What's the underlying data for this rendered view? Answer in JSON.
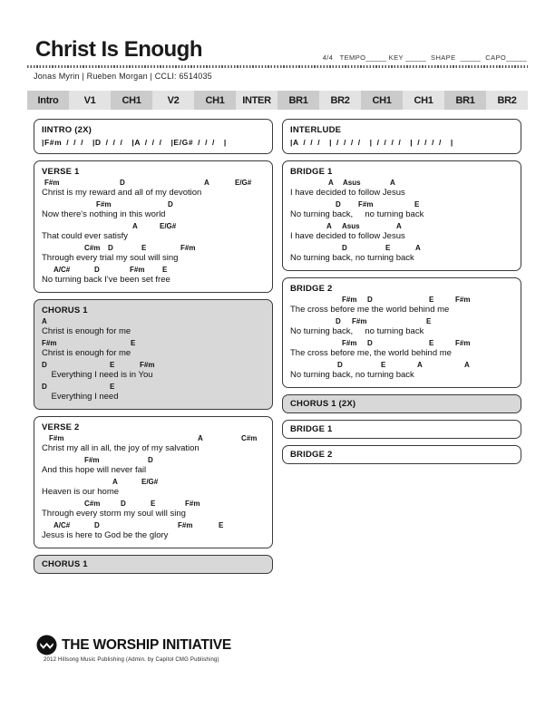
{
  "page": {
    "title": "Christ Is Enough",
    "meta_line": "4/4   TEMPO_____ KEY _____  SHAPE  _____  CAPO_____",
    "authors": "Jonas Myrin | Rueben Morgan |  CCLI: 6514035"
  },
  "nav": {
    "items": [
      "Intro",
      "V1",
      "CH1",
      "V2",
      "CH1",
      "INTER",
      "BR1",
      "BR2",
      "CH1",
      "CH1",
      "BR1",
      "BR2"
    ]
  },
  "colors": {
    "nav_dark": "#cbcbcb",
    "nav_light": "#e3e3e3",
    "chorus_fill": "#d8d8d8",
    "border": "#3a3a3a"
  },
  "columns": {
    "left": [
      {
        "kind": "chart",
        "fill": "white",
        "title": "IINTRO (2X)",
        "chordline": "|F#m / / /  |D / / /  |A / / /  |E/G# / / /  |"
      },
      {
        "kind": "chart",
        "fill": "white",
        "title": "VERSE 1",
        "lines": [
          {
            "chords": [
              [
                "F#m",
                3
              ],
              [
                "D",
                86
              ],
              [
                "A",
                179
              ],
              [
                "E/G#",
                213
              ]
            ],
            "lyric": "Christ is my reward and all of my devotion"
          },
          {
            "chords": [
              [
                "F#m",
                60
              ],
              [
                "D",
                139
              ]
            ],
            "lyric": "Now there's nothing in this world"
          },
          {
            "chords": [
              [
                "A",
                100
              ],
              [
                "E/G#",
                130
              ]
            ],
            "lyric": "That could ever satisfy"
          },
          {
            "chords": [
              [
                "C#m",
                47
              ],
              [
                "D",
                73
              ],
              [
                "E",
                110
              ],
              [
                "F#m",
                153
              ]
            ],
            "lyric": "Through every trial my soul will sing"
          },
          {
            "chords": [
              [
                "A/C#",
                13
              ],
              [
                "D",
                58
              ],
              [
                "F#m",
                97
              ],
              [
                "E",
                133
              ]
            ],
            "lyric": "No turning back I've been set free"
          }
        ]
      },
      {
        "kind": "chart",
        "fill": "gray",
        "title": "CHORUS 1",
        "lines": [
          {
            "chords": [
              [
                "A",
                0
              ]
            ],
            "lyric": "Christ is enough for me"
          },
          {
            "chords": [
              [
                "F#m",
                0
              ],
              [
                "E",
                98
              ]
            ],
            "lyric": "Christ is enough for me"
          },
          {
            "chords": [
              [
                "D",
                0
              ],
              [
                "E",
                75
              ],
              [
                "F#m",
                108
              ]
            ],
            "lyric": "    Everything I need is in You"
          },
          {
            "chords": [
              [
                "D",
                0
              ],
              [
                "E",
                75
              ]
            ],
            "lyric": "    Everything I need"
          }
        ]
      },
      {
        "kind": "chart",
        "fill": "white",
        "title": "VERSE 2",
        "lines": [
          {
            "chords": [
              [
                "F#m",
                8
              ],
              [
                "A",
                172
              ],
              [
                "C#m",
                220
              ]
            ],
            "lyric": "Christ my all in all, the joy of my salvation"
          },
          {
            "chords": [
              [
                "F#m",
                47
              ],
              [
                "D",
                117
              ]
            ],
            "lyric": "And this hope will never fail"
          },
          {
            "chords": [
              [
                "A",
                78
              ],
              [
                "E/G#",
                110
              ]
            ],
            "lyric": "Heaven is our home"
          },
          {
            "chords": [
              [
                "C#m",
                47
              ],
              [
                "D",
                87
              ],
              [
                "E",
                120
              ],
              [
                "F#m",
                158
              ]
            ],
            "lyric": "Through every storm my soul will sing"
          },
          {
            "chords": [
              [
                "A/C#",
                13
              ],
              [
                "D",
                58
              ],
              [
                "F#m",
                150
              ],
              [
                "E",
                195
              ]
            ],
            "lyric": "Jesus is here to God be the glory"
          }
        ]
      },
      {
        "kind": "bar",
        "fill": "gray",
        "title": "CHORUS 1"
      }
    ],
    "right": [
      {
        "kind": "chart",
        "fill": "white",
        "title": "INTERLUDE",
        "chordline": "|A / / /  | / / / /  | / / / /  | / / / /  |"
      },
      {
        "kind": "chart",
        "fill": "white",
        "title": "BRIDGE 1",
        "lines": [
          {
            "chords": [
              [
                "A",
                42
              ],
              [
                "Asus",
                58
              ],
              [
                "A",
                110
              ]
            ],
            "lyric": "I have decided to follow Jesus"
          },
          {
            "chords": [
              [
                "D",
                50
              ],
              [
                "F#m",
                75
              ],
              [
                "E",
                137
              ]
            ],
            "lyric": "No turning back,     no turning back"
          },
          {
            "chords": [
              [
                "A",
                40
              ],
              [
                "Asus",
                57
              ],
              [
                "A",
                117
              ]
            ],
            "lyric": "I have decided to follow Jesus"
          },
          {
            "chords": [
              [
                "D",
                57
              ],
              [
                "E",
                105
              ],
              [
                "A",
                138
              ]
            ],
            "lyric": "No turning back, no turning back"
          }
        ]
      },
      {
        "kind": "chart",
        "fill": "white",
        "title": "BRIDGE 2",
        "lines": [
          {
            "chords": [
              [
                "F#m",
                57
              ],
              [
                "D",
                85
              ],
              [
                "E",
                153
              ],
              [
                "F#m",
                182
              ]
            ],
            "lyric": "The cross before me the world behind me"
          },
          {
            "chords": [
              [
                "D",
                50
              ],
              [
                "F#m",
                68
              ],
              [
                "E",
                150
              ]
            ],
            "lyric": "No turning back,     no turning back"
          },
          {
            "chords": [
              [
                "F#m",
                57
              ],
              [
                "D",
                85
              ],
              [
                "E",
                153
              ],
              [
                "F#m",
                182
              ]
            ],
            "lyric": "The cross before me, the world behind me"
          },
          {
            "chords": [
              [
                "D",
                52
              ],
              [
                "E",
                100
              ],
              [
                "A",
                140
              ],
              [
                "A",
                192
              ]
            ],
            "lyric": "No turning back, no turning back"
          }
        ]
      },
      {
        "kind": "bar",
        "fill": "gray",
        "title": "CHORUS 1 (2X)"
      },
      {
        "kind": "bar",
        "fill": "white",
        "title": "BRIDGE 1"
      },
      {
        "kind": "bar",
        "fill": "white",
        "title": "BRIDGE 2"
      }
    ]
  },
  "footer": {
    "logo_icon": "worship-initiative-logo",
    "brand": "THE WORSHIP INITIATIVE",
    "copyright": "2012 Hillsong Music Publishing (Admin. by Capitol CMG Publishing)"
  }
}
